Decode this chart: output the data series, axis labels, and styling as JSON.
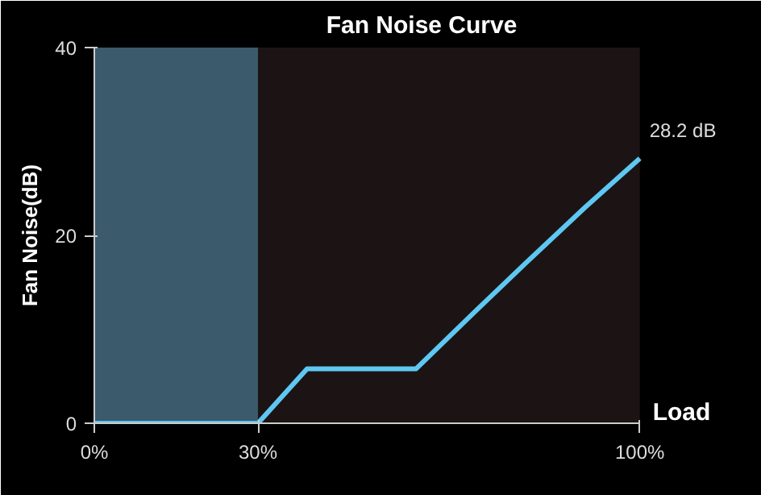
{
  "chart_data": {
    "type": "line",
    "title": "Fan Noise Curve",
    "xlabel": "Load",
    "ylabel": "Fan Noise(dB)",
    "x": [
      0,
      30,
      39,
      59,
      70,
      79,
      90,
      100
    ],
    "series": [
      {
        "color": "#5ec8f2",
        "values": [
          0,
          0,
          5.8,
          5.8,
          12,
          17,
          23,
          28.2
        ]
      }
    ],
    "xlim": [
      0,
      100
    ],
    "xticks": [
      {
        "value": 0,
        "label": "0%"
      },
      {
        "value": 30,
        "label": "30%"
      },
      {
        "value": 100,
        "label": "100%"
      }
    ],
    "ylim": [
      0,
      40
    ],
    "yticks": [
      0,
      20,
      40
    ],
    "grid": false,
    "marker": "none",
    "line_style": "solid",
    "bands": [
      {
        "axis": "x",
        "from": 0,
        "to": 30,
        "color": "#3b5a6c"
      }
    ],
    "annotations": [
      {
        "text": "28.2 dB",
        "x": 100,
        "y": 28.2
      }
    ]
  }
}
